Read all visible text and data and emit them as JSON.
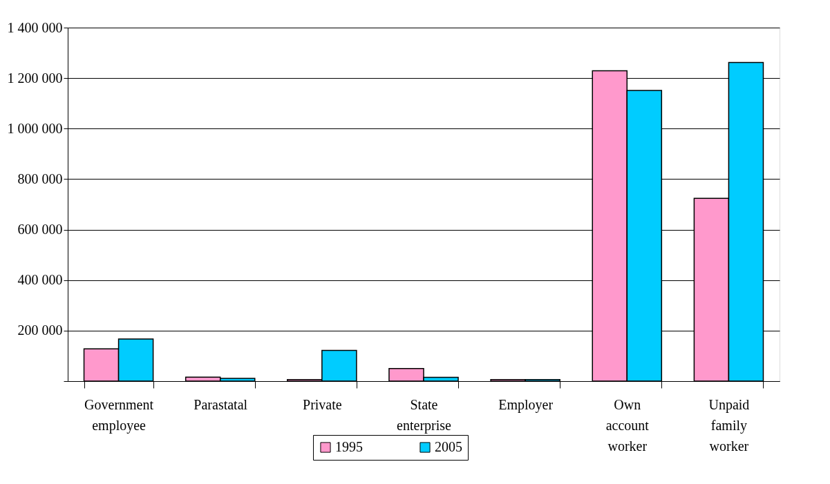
{
  "chart_data": {
    "type": "bar",
    "categories": [
      "Government employee",
      "Parastatal",
      "Private",
      "State enterprise",
      "Employer",
      "Own account worker",
      "Unpaid family worker"
    ],
    "series": [
      {
        "name": "1995",
        "color": "#ff99cc",
        "values": [
          128000,
          16000,
          6000,
          50000,
          6000,
          1229000,
          724000
        ]
      },
      {
        "name": "2005",
        "color": "#00ccff",
        "values": [
          167000,
          11000,
          122000,
          15000,
          6000,
          1151000,
          1262000
        ]
      }
    ],
    "ylim": [
      0,
      1400000
    ],
    "yticks": [
      {
        "value": 0,
        "label": null
      },
      {
        "value": 200000,
        "label": "200 000"
      },
      {
        "value": 400000,
        "label": "400 000"
      },
      {
        "value": 600000,
        "label": "600 000"
      },
      {
        "value": 800000,
        "label": "800 000"
      },
      {
        "value": 1000000,
        "label": "1 000 000"
      },
      {
        "value": 1200000,
        "label": "1 200 000"
      },
      {
        "value": 1400000,
        "label": "1 400 000"
      }
    ],
    "grid": "y",
    "legend": "bottom"
  }
}
